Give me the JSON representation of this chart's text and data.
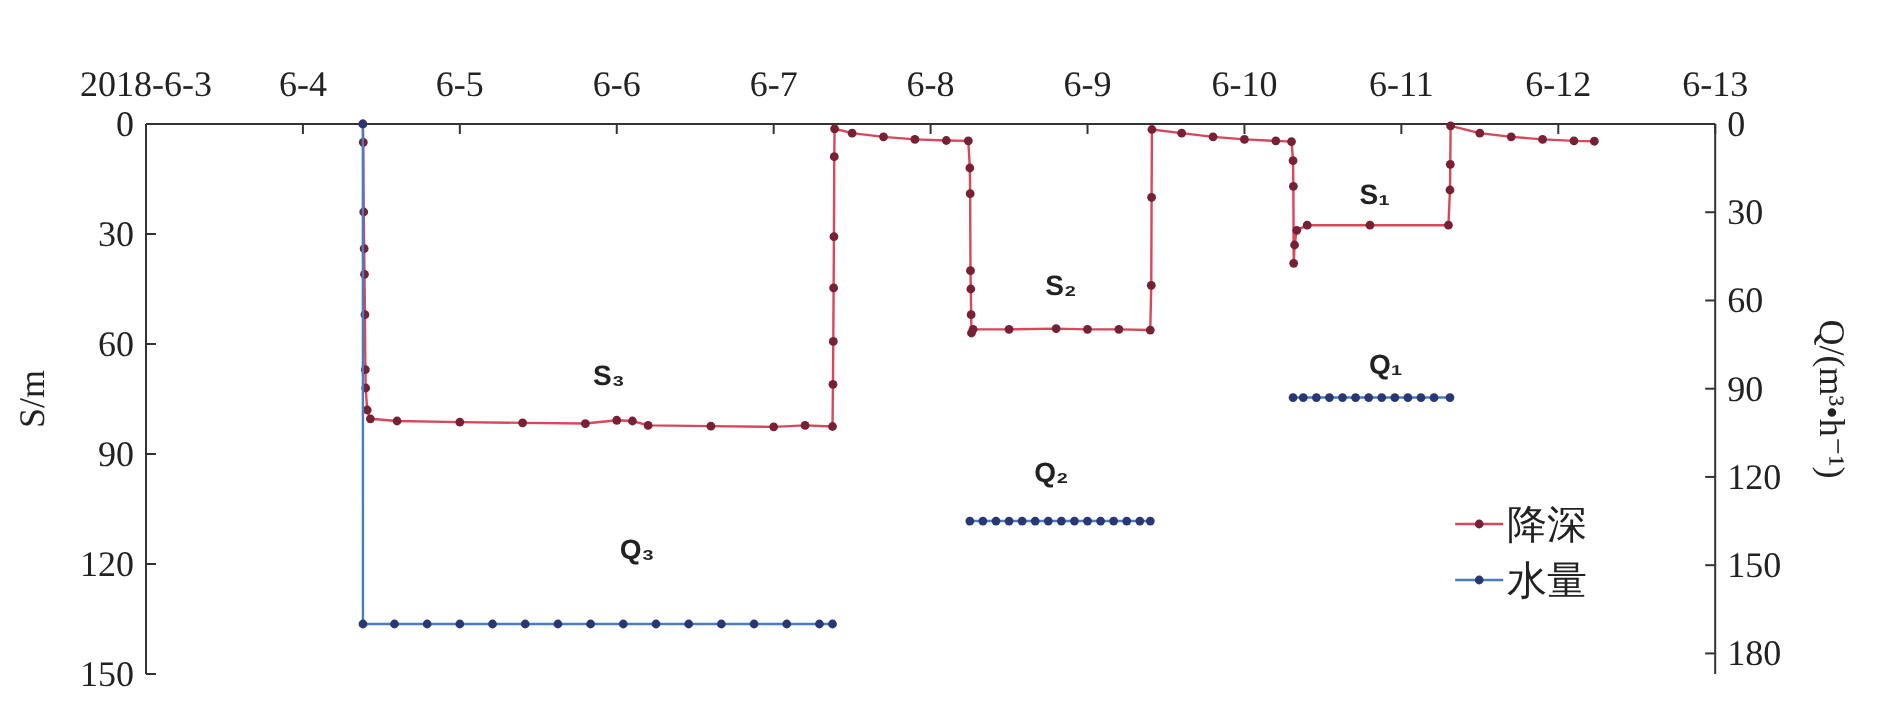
{
  "chart_data": {
    "type": "line",
    "xlabel": null,
    "ylabel": "S/m",
    "y2label": "Q/(m³•h⁻¹)",
    "xlim": [
      "2018-06-03",
      "2018-06-13"
    ],
    "xticks": [
      {
        "value": "2018-06-03",
        "label": "2018-6-3"
      },
      {
        "value": "2018-06-04",
        "label": "6-4"
      },
      {
        "value": "2018-06-05",
        "label": "6-5"
      },
      {
        "value": "2018-06-06",
        "label": "6-6"
      },
      {
        "value": "2018-06-07",
        "label": "6-7"
      },
      {
        "value": "2018-06-08",
        "label": "6-8"
      },
      {
        "value": "2018-06-09",
        "label": "6-9"
      },
      {
        "value": "2018-06-10",
        "label": "6-10"
      },
      {
        "value": "2018-06-11",
        "label": "6-11"
      },
      {
        "value": "2018-06-12",
        "label": "6-12"
      },
      {
        "value": "2018-06-13",
        "label": "6-13"
      }
    ],
    "ylim": [
      150,
      0
    ],
    "yticks": [
      0,
      30,
      60,
      90,
      120,
      150
    ],
    "y2lim": [
      187,
      0
    ],
    "y2ticks": [
      0,
      30,
      60,
      90,
      120,
      150,
      180
    ],
    "marker": "circle",
    "line_style": "solid",
    "legend": "bottom right",
    "grid": false,
    "series": [
      {
        "name": "降深",
        "color": "#d9475a",
        "x": [
          "2018-06-04T09:10",
          "2018-06-04T09:14",
          "2018-06-04T09:18",
          "2018-06-04T09:22",
          "2018-06-04T09:25",
          "2018-06-04T09:29",
          "2018-06-04T09:33",
          "2018-06-04T09:36",
          "2018-06-04T09:50",
          "2018-06-04T10:19",
          "2018-06-04T14:24",
          "2018-06-05T00:00",
          "2018-06-05T09:36",
          "2018-06-05T19:12",
          "2018-06-06T00:00",
          "2018-06-06T02:24",
          "2018-06-06T04:48",
          "2018-06-06T14:24",
          "2018-06-07T00:00",
          "2018-06-07T04:48",
          "2018-06-07T09:00",
          "2018-06-07T09:04",
          "2018-06-07T09:07",
          "2018-06-07T09:10",
          "2018-06-07T09:13",
          "2018-06-07T09:16",
          "2018-06-07T09:19",
          "2018-06-07T12:00",
          "2018-06-07T16:48",
          "2018-06-07T21:36",
          "2018-06-08T02:24",
          "2018-06-08T05:46",
          "2018-06-08T06:00",
          "2018-06-08T06:03",
          "2018-06-08T06:06",
          "2018-06-08T06:09",
          "2018-06-08T06:12",
          "2018-06-08T06:15",
          "2018-06-08T06:30",
          "2018-06-08T12:00",
          "2018-06-08T19:12",
          "2018-06-09T00:00",
          "2018-06-09T04:48",
          "2018-06-09T09:36",
          "2018-06-09T09:45",
          "2018-06-09T09:48",
          "2018-06-09T09:51",
          "2018-06-09T14:24",
          "2018-06-09T19:12",
          "2018-06-10T00:00",
          "2018-06-10T04:48",
          "2018-06-10T07:12",
          "2018-06-10T07:26",
          "2018-06-10T07:29",
          "2018-06-10T07:32",
          "2018-06-10T07:40",
          "2018-06-10T08:00",
          "2018-06-10T09:36",
          "2018-06-10T19:12",
          "2018-06-11T07:12",
          "2018-06-11T07:26",
          "2018-06-11T07:29",
          "2018-06-11T07:32",
          "2018-06-11T12:00",
          "2018-06-11T16:48",
          "2018-06-11T21:36",
          "2018-06-12T02:24",
          "2018-06-12T05:31"
        ],
        "values": [
          0,
          5,
          24,
          34,
          41,
          52,
          67,
          72,
          78,
          80.4,
          81,
          81.3,
          81.5,
          81.7,
          80.8,
          81,
          82.2,
          82.4,
          82.6,
          82.2,
          82.5,
          71,
          59.3,
          44.7,
          30.7,
          8.9,
          1.3,
          2.5,
          3.5,
          4.2,
          4.5,
          4.6,
          12,
          19,
          40,
          45,
          52,
          57,
          56,
          56,
          55.8,
          56,
          56,
          56.2,
          44,
          20,
          1.5,
          2.5,
          3.5,
          4.2,
          4.6,
          4.8,
          10,
          17,
          38,
          33,
          29,
          27.6,
          27.6,
          27.6,
          18,
          11,
          0.5,
          2.5,
          3.5,
          4.2,
          4.6,
          4.7
        ]
      },
      {
        "name": "水量",
        "color": "#4a7cc0",
        "axis": "y2",
        "x": [
          "2018-06-04T09:10",
          "2018-06-04T09:11",
          "2018-06-04T14:00",
          "2018-06-04T19:00",
          "2018-06-05T00:00",
          "2018-06-05T05:00",
          "2018-06-05T10:00",
          "2018-06-05T15:00",
          "2018-06-05T20:00",
          "2018-06-06T01:00",
          "2018-06-06T06:00",
          "2018-06-06T11:00",
          "2018-06-06T16:00",
          "2018-06-06T21:00",
          "2018-06-07T02:00",
          "2018-06-07T07:00",
          "2018-06-07T09:00",
          null,
          "2018-06-08T06:00",
          "2018-06-08T08:00",
          "2018-06-08T10:00",
          "2018-06-08T12:00",
          "2018-06-08T14:00",
          "2018-06-08T16:00",
          "2018-06-08T18:00",
          "2018-06-08T20:00",
          "2018-06-08T22:00",
          "2018-06-09T00:00",
          "2018-06-09T02:00",
          "2018-06-09T04:00",
          "2018-06-09T06:00",
          "2018-06-09T08:00",
          "2018-06-09T09:36",
          null,
          "2018-06-10T07:26",
          "2018-06-10T09:00",
          "2018-06-10T11:00",
          "2018-06-10T13:00",
          "2018-06-10T15:00",
          "2018-06-10T17:00",
          "2018-06-10T19:00",
          "2018-06-10T21:00",
          "2018-06-10T23:00",
          "2018-06-11T01:00",
          "2018-06-11T03:00",
          "2018-06-11T05:00",
          "2018-06-11T07:26"
        ],
        "values": [
          0,
          170,
          170,
          170,
          170,
          170,
          170,
          170,
          170,
          170,
          170,
          170,
          170,
          170,
          170,
          170,
          170,
          null,
          135,
          135,
          135,
          135,
          135,
          135,
          135,
          135,
          135,
          135,
          135,
          135,
          135,
          135,
          135,
          null,
          93,
          93,
          93,
          93,
          93,
          93,
          93,
          93,
          93,
          93,
          93,
          93,
          93
        ]
      }
    ],
    "annotations": [
      "S₃",
      "Q₃",
      "S₂",
      "Q₂",
      "S₁",
      "Q₁"
    ]
  }
}
